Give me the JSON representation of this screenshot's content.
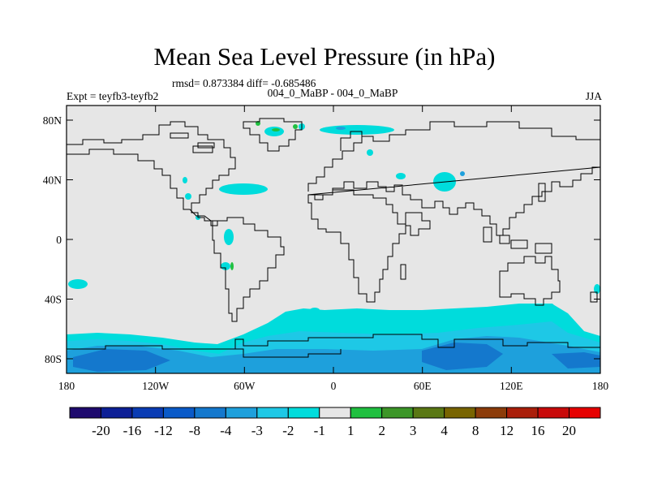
{
  "title": "Mean Sea Level Pressure (in hPa)",
  "stats": "rmsd= 0.873384 diff= -0.685486",
  "experiment": "Expt = teyfb3-teyfb2",
  "cases": "004_0_MaBP - 004_0_MaBP",
  "season": "JJA",
  "axes": {
    "x_labels": [
      "180",
      "120W",
      "60W",
      "0",
      "60E",
      "120E",
      "180"
    ],
    "y_labels": [
      "80N",
      "40N",
      "0",
      "40S",
      "80S"
    ]
  },
  "colorbar": {
    "labels": [
      "-20",
      "-16",
      "-12",
      "-8",
      "-4",
      "-3",
      "-2",
      "-1",
      "1",
      "2",
      "3",
      "4",
      "8",
      "12",
      "16",
      "20"
    ],
    "colors": [
      "#1e0a6e",
      "#0d1f96",
      "#0a3cb4",
      "#0a5ac8",
      "#1478cd",
      "#1ea0dc",
      "#1ec8e6",
      "#00dcdc",
      "#e6e6e6",
      "#20c040",
      "#3c9628",
      "#5a7814",
      "#786400",
      "#8c3c0a",
      "#aa1e0a",
      "#c80a0a",
      "#e60000"
    ]
  },
  "colors": {
    "land_ocean": "#e6e6e6",
    "cyan": "#00dcdc",
    "light_blue": "#1ec8e6",
    "mid_blue": "#1ea0dc",
    "deep_blue": "#1478cd",
    "green": "#20c040",
    "dark_green": "#3c9628"
  }
}
